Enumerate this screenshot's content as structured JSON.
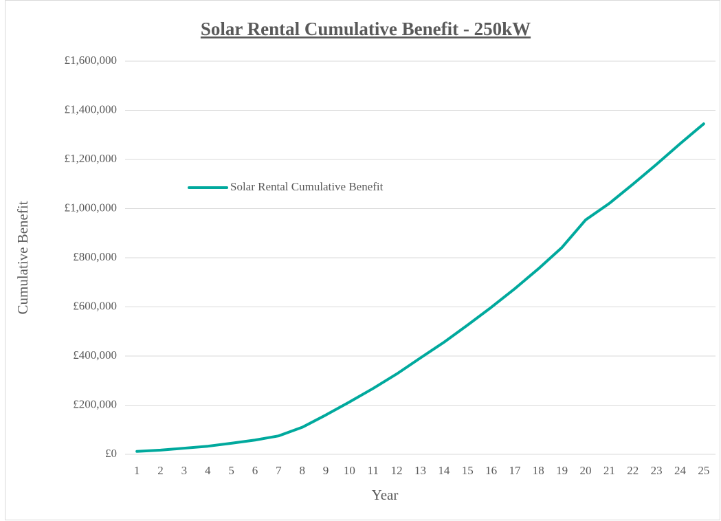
{
  "chart_data": {
    "type": "line",
    "title": "Solar Rental Cumulative Benefit - 250kW",
    "x_label": "Year",
    "y_label": "Cumulative Benefit",
    "categories": [
      "1",
      "2",
      "3",
      "4",
      "5",
      "6",
      "7",
      "8",
      "9",
      "10",
      "11",
      "12",
      "13",
      "14",
      "15",
      "16",
      "17",
      "18",
      "19",
      "20",
      "21",
      "22",
      "23",
      "24",
      "25"
    ],
    "series": [
      {
        "name": "Solar Rental Cumulative Benefit",
        "color": "#00a99d",
        "values": [
          12000,
          17000,
          25000,
          33000,
          45000,
          58000,
          75000,
          110000,
          160000,
          213000,
          268000,
          327000,
          392000,
          456000,
          526000,
          598000,
          674000,
          755000,
          842000,
          954000,
          1021000,
          1099000,
          1180000,
          1264000,
          1345000
        ]
      }
    ],
    "ylim": [
      0,
      1600000
    ],
    "yticks": [
      {
        "value": 0,
        "label": "£0"
      },
      {
        "value": 200000,
        "label": "£200,000"
      },
      {
        "value": 400000,
        "label": "£400,000"
      },
      {
        "value": 600000,
        "label": "£600,000"
      },
      {
        "value": 800000,
        "label": "£800,000"
      },
      {
        "value": 1000000,
        "label": "£1,000,000"
      },
      {
        "value": 1200000,
        "label": "£1,200,000"
      },
      {
        "value": 1400000,
        "label": "£1,400,000"
      },
      {
        "value": 1600000,
        "label": "£1,600,000"
      }
    ],
    "grid": true,
    "legend": "upper left"
  }
}
